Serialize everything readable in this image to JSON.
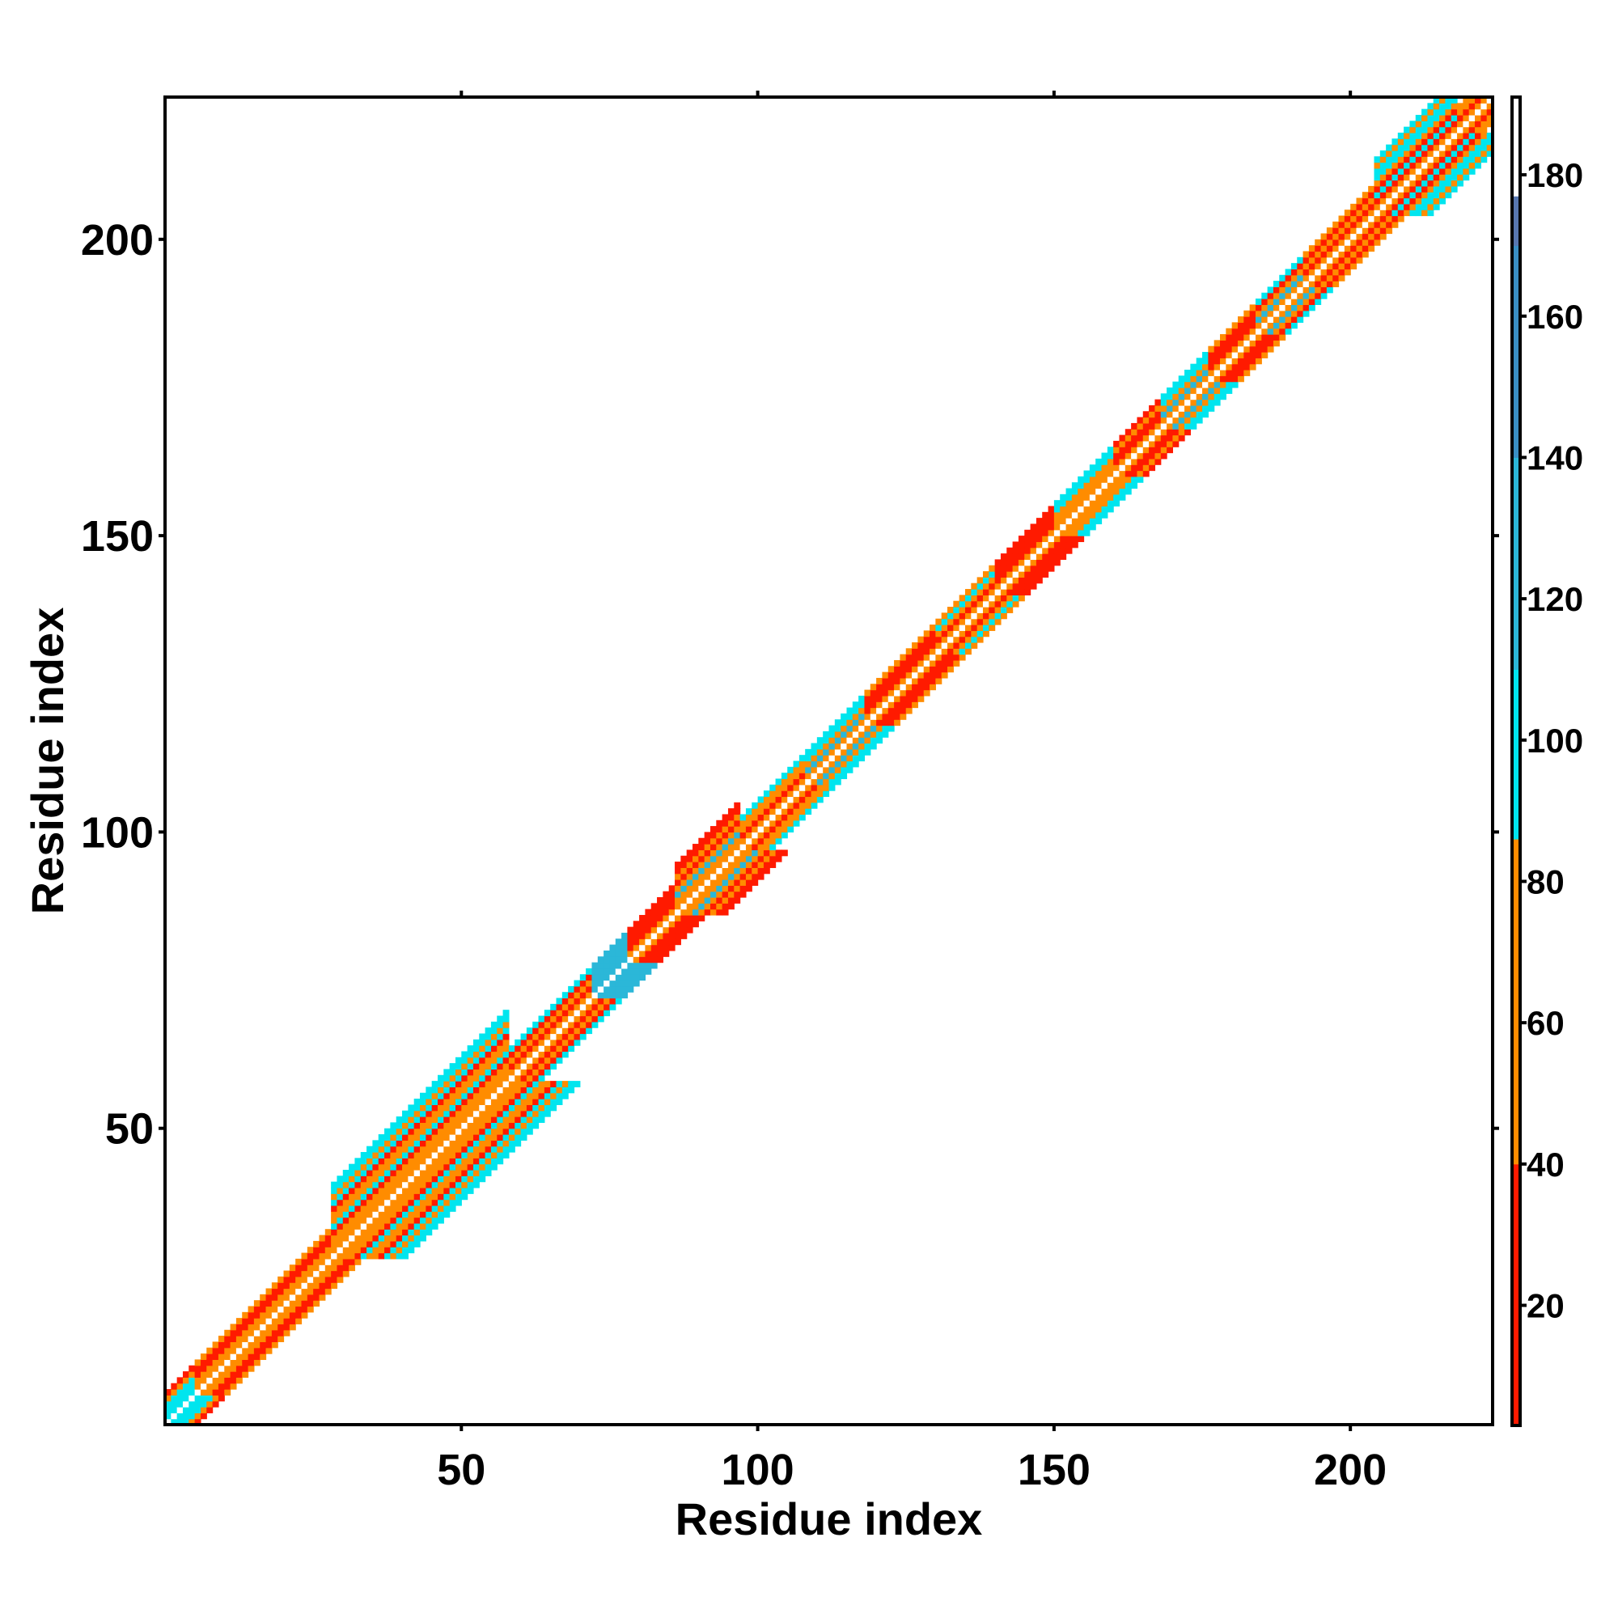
{
  "chart_data": {
    "type": "heatmap",
    "title": "",
    "xlabel": "Residue index",
    "ylabel": "Residue index",
    "xlim": [
      0,
      224
    ],
    "ylim": [
      0,
      224
    ],
    "x_ticks": [
      50,
      100,
      150,
      200
    ],
    "y_ticks": [
      50,
      100,
      150,
      200
    ],
    "grid": false,
    "colorbar": {
      "range": [
        3,
        191
      ],
      "ticks": [
        20,
        40,
        60,
        80,
        100,
        120,
        140,
        160,
        180
      ],
      "bands": [
        {
          "from": 3,
          "to": 40,
          "color": "#ff1a00"
        },
        {
          "from": 40,
          "to": 86,
          "color": "#ff8c00"
        },
        {
          "from": 86,
          "to": 110,
          "color": "#00e5ee"
        },
        {
          "from": 110,
          "to": 140,
          "color": "#2bb7d8"
        },
        {
          "from": 140,
          "to": 170,
          "color": "#3a8fc4"
        },
        {
          "from": 170,
          "to": 177,
          "color": "#5877b0"
        },
        {
          "from": 177,
          "to": 191,
          "color": "#ffffff"
        }
      ]
    },
    "diagonal_value": 191,
    "pixel_size": 1,
    "segments": [
      {
        "from": 0,
        "to": 5,
        "halfwidth": 6,
        "contacts": [
          [
            1,
            95
          ],
          [
            2,
            95
          ],
          [
            3,
            95
          ],
          [
            4,
            70
          ],
          [
            5,
            30
          ]
        ]
      },
      {
        "from": 5,
        "to": 28,
        "halfwidth": 5,
        "contacts": [
          [
            1,
            55
          ],
          [
            2,
            70
          ],
          [
            3,
            30
          ],
          [
            4,
            20
          ],
          [
            5,
            60
          ]
        ]
      },
      {
        "from": 28,
        "to": 58,
        "halfwidth": 12,
        "contacts": [
          [
            1,
            70
          ],
          [
            2,
            55
          ],
          [
            3,
            80
          ],
          [
            4,
            30
          ],
          [
            5,
            95
          ],
          [
            6,
            60
          ],
          [
            7,
            75
          ],
          [
            8,
            30
          ],
          [
            9,
            95
          ],
          [
            10,
            40
          ],
          [
            11,
            100
          ],
          [
            12,
            95
          ]
        ]
      },
      {
        "from": 58,
        "to": 72,
        "halfwidth": 5,
        "contacts": [
          [
            1,
            65
          ],
          [
            2,
            30
          ],
          [
            3,
            60
          ],
          [
            4,
            30
          ],
          [
            5,
            95
          ]
        ]
      },
      {
        "from": 72,
        "to": 78,
        "halfwidth": 5,
        "contacts": [
          [
            1,
            130
          ],
          [
            2,
            130
          ],
          [
            3,
            115
          ],
          [
            4,
            120
          ],
          [
            5,
            130
          ]
        ]
      },
      {
        "from": 78,
        "to": 86,
        "halfwidth": 5,
        "contacts": [
          [
            1,
            60
          ],
          [
            2,
            30
          ],
          [
            3,
            20
          ],
          [
            4,
            30
          ],
          [
            5,
            25
          ]
        ]
      },
      {
        "from": 86,
        "to": 97,
        "halfwidth": 8,
        "contacts": [
          [
            1,
            70
          ],
          [
            2,
            60
          ],
          [
            3,
            115
          ],
          [
            4,
            70
          ],
          [
            5,
            30
          ],
          [
            6,
            65
          ],
          [
            7,
            30
          ],
          [
            8,
            25
          ]
        ]
      },
      {
        "from": 97,
        "to": 108,
        "halfwidth": 5,
        "contacts": [
          [
            1,
            65
          ],
          [
            2,
            30
          ],
          [
            3,
            70
          ],
          [
            4,
            40
          ],
          [
            5,
            95
          ]
        ]
      },
      {
        "from": 108,
        "to": 118,
        "halfwidth": 5,
        "contacts": [
          [
            1,
            70
          ],
          [
            2,
            110
          ],
          [
            3,
            65
          ],
          [
            4,
            95
          ],
          [
            5,
            100
          ]
        ]
      },
      {
        "from": 118,
        "to": 130,
        "halfwidth": 5,
        "contacts": [
          [
            1,
            60
          ],
          [
            2,
            25
          ],
          [
            3,
            30
          ],
          [
            4,
            20
          ],
          [
            5,
            60
          ]
        ]
      },
      {
        "from": 130,
        "to": 140,
        "halfwidth": 5,
        "contacts": [
          [
            1,
            70
          ],
          [
            2,
            30
          ],
          [
            3,
            65
          ],
          [
            4,
            100
          ],
          [
            5,
            60
          ]
        ]
      },
      {
        "from": 140,
        "to": 150,
        "halfwidth": 5,
        "contacts": [
          [
            1,
            60
          ],
          [
            2,
            25
          ],
          [
            3,
            20
          ],
          [
            4,
            30
          ],
          [
            5,
            25
          ]
        ]
      },
      {
        "from": 150,
        "to": 160,
        "halfwidth": 5,
        "contacts": [
          [
            1,
            70
          ],
          [
            2,
            60
          ],
          [
            3,
            75
          ],
          [
            4,
            100
          ],
          [
            5,
            95
          ]
        ]
      },
      {
        "from": 160,
        "to": 168,
        "halfwidth": 5,
        "contacts": [
          [
            1,
            60
          ],
          [
            2,
            30
          ],
          [
            3,
            25
          ],
          [
            4,
            60
          ],
          [
            5,
            30
          ]
        ]
      },
      {
        "from": 168,
        "to": 176,
        "halfwidth": 5,
        "contacts": [
          [
            1,
            70
          ],
          [
            2,
            110
          ],
          [
            3,
            70
          ],
          [
            4,
            95
          ],
          [
            5,
            100
          ]
        ]
      },
      {
        "from": 176,
        "to": 184,
        "halfwidth": 5,
        "contacts": [
          [
            1,
            60
          ],
          [
            2,
            30
          ],
          [
            3,
            25
          ],
          [
            4,
            30
          ],
          [
            5,
            60
          ]
        ]
      },
      {
        "from": 184,
        "to": 192,
        "halfwidth": 5,
        "contacts": [
          [
            1,
            70
          ],
          [
            2,
            110
          ],
          [
            3,
            60
          ],
          [
            4,
            30
          ],
          [
            5,
            95
          ]
        ]
      },
      {
        "from": 192,
        "to": 204,
        "halfwidth": 5,
        "contacts": [
          [
            1,
            60
          ],
          [
            2,
            30
          ],
          [
            3,
            65
          ],
          [
            4,
            25
          ],
          [
            5,
            60
          ]
        ]
      },
      {
        "from": 204,
        "to": 218,
        "halfwidth": 9,
        "contacts": [
          [
            1,
            70
          ],
          [
            2,
            25
          ],
          [
            3,
            100
          ],
          [
            4,
            30
          ],
          [
            5,
            60
          ],
          [
            6,
            100
          ],
          [
            7,
            95
          ],
          [
            8,
            60
          ],
          [
            9,
            95
          ]
        ]
      },
      {
        "from": 218,
        "to": 224,
        "halfwidth": 4,
        "contacts": [
          [
            1,
            70
          ],
          [
            2,
            30
          ],
          [
            3,
            65
          ],
          [
            4,
            60
          ]
        ]
      }
    ]
  }
}
